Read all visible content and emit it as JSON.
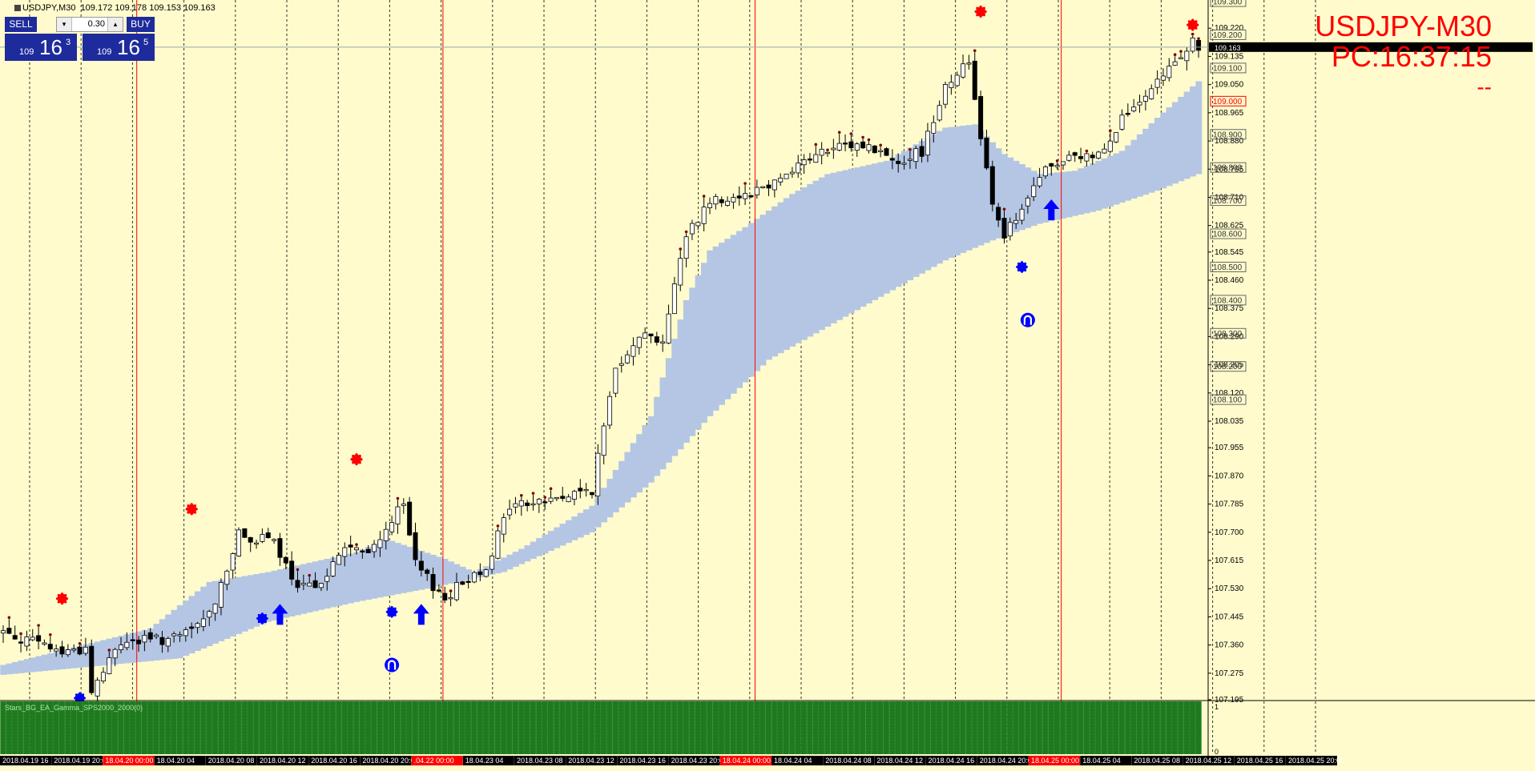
{
  "header": {
    "symbol_label": "USDJPY,M30",
    "ohlc": "109.172 109.178 109.153 109.163"
  },
  "trade_panel": {
    "sell_label": "SELL",
    "buy_label": "BUY",
    "lot": "0.30",
    "down_arrow": "▾",
    "up_arrow": "▴",
    "sell_small": "109",
    "sell_big": "16",
    "sell_sup": "3",
    "buy_small": "109",
    "buy_big": "16",
    "buy_sup": "5"
  },
  "overlay": {
    "title": "USDJPY-M30",
    "clock": "PC:16:37:15",
    "dash": "--"
  },
  "colors": {
    "background": "#FFFBCC",
    "band": "#B4C6E4",
    "bull_fill": "#FFFFFF",
    "bear_fill": "#000000",
    "red_marker": "#FF0000",
    "blue_marker": "#0000FF",
    "histogram": "#1F7A1F",
    "red_vline": "#FF0000",
    "date_label_bg": "#000000",
    "date_highlight_bg": "#FF0000"
  },
  "chart_data": {
    "type": "candlestick",
    "timeframe": "M30",
    "symbol": "USDJPY",
    "ylim": [
      107.195,
      109.305
    ],
    "current_price": 109.163,
    "y_ticks": [
      "109.220",
      "109.135",
      "109.050",
      "108.965",
      "108.880",
      "108.795",
      "108.710",
      "108.625",
      "108.545",
      "108.460",
      "108.375",
      "108.290",
      "108.205",
      "108.120",
      "108.035",
      "107.955",
      "107.870",
      "107.785",
      "107.700",
      "107.615",
      "107.530",
      "107.445",
      "107.360",
      "107.275",
      "107.195"
    ],
    "level_labels": [
      "109.300",
      "109.200",
      "109.100",
      "109.000",
      "108.900",
      "108.800",
      "108.700",
      "108.600",
      "108.500",
      "108.400",
      "108.300",
      "108.200",
      "108.100"
    ],
    "highlight_level": "109.000",
    "x_labels": [
      {
        "text": "2018.04.19 16",
        "hl": false
      },
      {
        "text": "2018.04.19 20:00",
        "hl": false
      },
      {
        "text": "18.04.20 00:00",
        "hl": true
      },
      {
        "text": "18.04.20 04",
        "hl": false
      },
      {
        "text": "2018.04.20 08",
        "hl": false
      },
      {
        "text": "2018.04.20 12",
        "hl": false
      },
      {
        "text": "2018.04.20 16",
        "hl": false
      },
      {
        "text": "2018.04.20 20:00",
        "hl": false
      },
      {
        "text": ".04.22 00:00",
        "hl": true
      },
      {
        "text": "18.04.23 04",
        "hl": false
      },
      {
        "text": "2018.04.23 08",
        "hl": false
      },
      {
        "text": "2018.04.23 12",
        "hl": false
      },
      {
        "text": "2018.04.23 16",
        "hl": false
      },
      {
        "text": "2018.04.23 20:00",
        "hl": false
      },
      {
        "text": "18.04.24 00:00",
        "hl": true
      },
      {
        "text": "18.04.24 04",
        "hl": false
      },
      {
        "text": "2018.04.24 08",
        "hl": false
      },
      {
        "text": "2018.04.24 12",
        "hl": false
      },
      {
        "text": "2018.04.24 16",
        "hl": false
      },
      {
        "text": "2018.04.24 20:00",
        "hl": false
      },
      {
        "text": "18.04.25 00:00",
        "hl": true
      },
      {
        "text": "18.04.25 04",
        "hl": false
      },
      {
        "text": "2018.04.25 08",
        "hl": false
      },
      {
        "text": "2018.04.25 12",
        "hl": false
      },
      {
        "text": "2018.04.25 16",
        "hl": false
      },
      {
        "text": "2018.04.25 20:00",
        "hl": false
      }
    ],
    "close_anchors": [
      [
        0,
        107.4
      ],
      [
        10,
        107.34
      ],
      [
        14,
        107.35
      ],
      [
        15,
        107.22
      ],
      [
        20,
        107.37
      ],
      [
        30,
        107.38
      ],
      [
        35,
        107.45
      ],
      [
        40,
        107.69
      ],
      [
        46,
        107.67
      ],
      [
        50,
        107.52
      ],
      [
        53,
        107.55
      ],
      [
        55,
        107.57
      ],
      [
        58,
        107.66
      ],
      [
        62,
        107.63
      ],
      [
        66,
        107.74
      ],
      [
        68,
        107.78
      ],
      [
        70,
        107.6
      ],
      [
        72,
        107.56
      ],
      [
        75,
        107.5
      ],
      [
        78,
        107.55
      ],
      [
        82,
        107.6
      ],
      [
        86,
        107.78
      ],
      [
        90,
        107.79
      ],
      [
        93,
        107.8
      ],
      [
        96,
        107.81
      ],
      [
        100,
        107.83
      ],
      [
        104,
        108.2
      ],
      [
        108,
        108.3
      ],
      [
        112,
        108.28
      ],
      [
        116,
        108.6
      ],
      [
        120,
        108.7
      ],
      [
        126,
        108.72
      ],
      [
        130,
        108.75
      ],
      [
        136,
        108.82
      ],
      [
        140,
        108.85
      ],
      [
        146,
        108.87
      ],
      [
        152,
        108.82
      ],
      [
        156,
        108.85
      ],
      [
        160,
        109.05
      ],
      [
        164,
        109.12
      ],
      [
        166,
        108.9
      ],
      [
        168,
        108.7
      ],
      [
        170,
        108.6
      ],
      [
        173,
        108.66
      ],
      [
        176,
        108.78
      ],
      [
        180,
        108.82
      ],
      [
        186,
        108.84
      ],
      [
        190,
        108.95
      ],
      [
        194,
        109.0
      ],
      [
        198,
        109.1
      ],
      [
        202,
        109.18
      ],
      [
        203,
        109.163
      ]
    ],
    "band_upper_anchors": [
      [
        0,
        107.3
      ],
      [
        25,
        107.41
      ],
      [
        35,
        107.55
      ],
      [
        45,
        107.58
      ],
      [
        60,
        107.64
      ],
      [
        65,
        107.68
      ],
      [
        75,
        107.62
      ],
      [
        80,
        107.58
      ],
      [
        88,
        107.65
      ],
      [
        100,
        107.78
      ],
      [
        110,
        108.05
      ],
      [
        116,
        108.4
      ],
      [
        120,
        108.55
      ],
      [
        126,
        108.62
      ],
      [
        134,
        108.72
      ],
      [
        140,
        108.78
      ],
      [
        150,
        108.82
      ],
      [
        160,
        108.92
      ],
      [
        165,
        108.93
      ],
      [
        170,
        108.84
      ],
      [
        176,
        108.78
      ],
      [
        182,
        108.79
      ],
      [
        190,
        108.85
      ],
      [
        196,
        108.95
      ],
      [
        203,
        109.06
      ]
    ],
    "band_lower_anchors": [
      [
        0,
        107.27
      ],
      [
        30,
        107.32
      ],
      [
        45,
        107.43
      ],
      [
        60,
        107.49
      ],
      [
        72,
        107.53
      ],
      [
        85,
        107.58
      ],
      [
        100,
        107.7
      ],
      [
        110,
        107.85
      ],
      [
        120,
        108.05
      ],
      [
        130,
        108.22
      ],
      [
        140,
        108.32
      ],
      [
        150,
        108.42
      ],
      [
        160,
        108.52
      ],
      [
        168,
        108.58
      ],
      [
        176,
        108.63
      ],
      [
        186,
        108.67
      ],
      [
        196,
        108.73
      ],
      [
        203,
        108.78
      ]
    ],
    "red_markers": [
      {
        "bar": 10,
        "price": 107.5
      },
      {
        "bar": 32,
        "price": 107.77
      },
      {
        "bar": 60,
        "price": 107.92
      },
      {
        "bar": 166,
        "price": 109.27
      },
      {
        "bar": 202,
        "price": 109.23
      }
    ],
    "blue_circles": [
      {
        "bar": 13,
        "price": 107.2
      },
      {
        "bar": 44,
        "price": 107.44
      },
      {
        "bar": 66,
        "price": 107.46
      },
      {
        "bar": 173,
        "price": 108.5
      }
    ],
    "blue_arrows": [
      {
        "bar": 47,
        "price": 107.45
      },
      {
        "bar": 71,
        "price": 107.45
      },
      {
        "bar": 178,
        "price": 108.67
      }
    ],
    "blue_horseshoes": [
      {
        "bar": 66,
        "price": 107.3
      },
      {
        "bar": 174,
        "price": 108.34
      }
    ],
    "red_vlines_at_bar": [
      22,
      74,
      127,
      179
    ],
    "indicator": {
      "label": "Stars_BG_EA_Gamma_SPS2000_2000(0)",
      "scale_max": "1",
      "scale_min": "0"
    }
  }
}
